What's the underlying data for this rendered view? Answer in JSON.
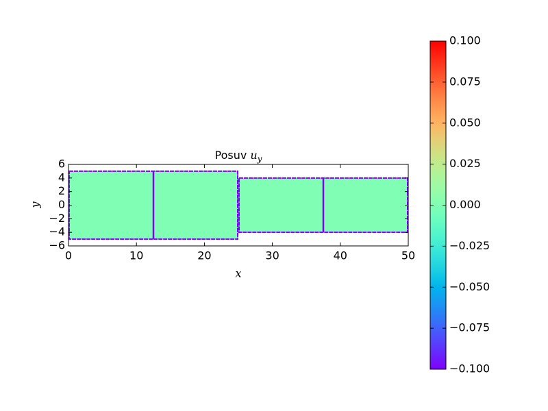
{
  "chart_data": {
    "type": "contour",
    "title": {
      "text": "Posuv",
      "symbol": "u",
      "subscript": "y"
    },
    "xlabel": "x",
    "ylabel": "y",
    "xlim": [
      0,
      50
    ],
    "ylim": [
      -6,
      6
    ],
    "xticks": [
      0,
      10,
      20,
      30,
      40,
      50
    ],
    "yticks": [
      {
        "value": -6,
        "label": "−6"
      },
      {
        "value": -4,
        "label": "−4"
      },
      {
        "value": -2,
        "label": "−2"
      },
      0,
      2,
      4,
      6
    ],
    "colormap": "rainbow",
    "clim": [
      -0.1,
      0.1
    ],
    "cticks": [
      {
        "value": -0.1,
        "label": "−0.100"
      },
      {
        "value": -0.075,
        "label": "−0.075"
      },
      {
        "value": -0.05,
        "label": "−0.050"
      },
      {
        "value": -0.025,
        "label": "−0.025"
      },
      {
        "value": 0,
        "label": "0.000"
      },
      {
        "value": 0.025,
        "label": "0.025"
      },
      {
        "value": 0.05,
        "label": "0.050"
      },
      {
        "value": 0.075,
        "label": "0.075"
      },
      {
        "value": 0.1,
        "label": "0.100"
      }
    ],
    "regions": [
      {
        "x": [
          0,
          25
        ],
        "y": [
          -5,
          5
        ],
        "value": 0
      },
      {
        "x": [
          25,
          50
        ],
        "y": [
          -4,
          4
        ],
        "value": 0
      }
    ],
    "boundary_value": -0.1,
    "cracks": [
      {
        "x": 12.5,
        "y": [
          -5,
          5
        ]
      },
      {
        "x": 37.5,
        "y": [
          -4,
          4
        ]
      }
    ]
  }
}
